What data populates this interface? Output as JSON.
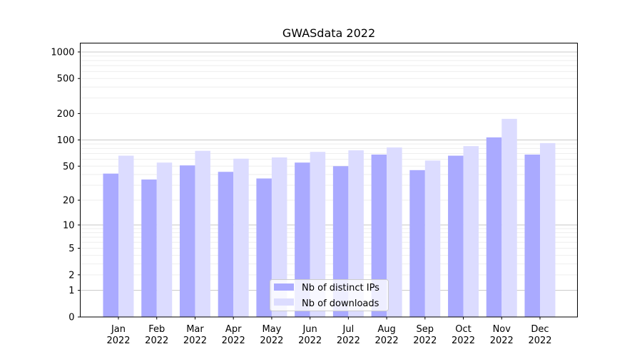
{
  "chart_data": {
    "type": "bar",
    "title": "GWASdata 2022",
    "xlabel": "",
    "ylabel": "",
    "yscale": "symlog (log10(1+y))",
    "ylim": [
      0,
      1200
    ],
    "yticks": [
      0,
      1,
      2,
      5,
      10,
      20,
      50,
      100,
      200,
      500,
      1000
    ],
    "grid": "y major and minor",
    "legend_position": "bottom-center",
    "categories": [
      [
        "Jan",
        "2022"
      ],
      [
        "Feb",
        "2022"
      ],
      [
        "Mar",
        "2022"
      ],
      [
        "Apr",
        "2022"
      ],
      [
        "May",
        "2022"
      ],
      [
        "Jun",
        "2022"
      ],
      [
        "Jul",
        "2022"
      ],
      [
        "Aug",
        "2022"
      ],
      [
        "Sep",
        "2022"
      ],
      [
        "Oct",
        "2022"
      ],
      [
        "Nov",
        "2022"
      ],
      [
        "Dec",
        "2022"
      ]
    ],
    "series": [
      {
        "name": "Nb of distinct IPs",
        "color": "#aaaaff",
        "values": [
          41,
          35,
          51,
          43,
          36,
          55,
          50,
          68,
          45,
          66,
          107,
          68
        ]
      },
      {
        "name": "Nb of downloads",
        "color": "#dcdcff",
        "values": [
          66,
          55,
          75,
          61,
          63,
          73,
          76,
          82,
          58,
          85,
          174,
          92
        ]
      }
    ]
  }
}
